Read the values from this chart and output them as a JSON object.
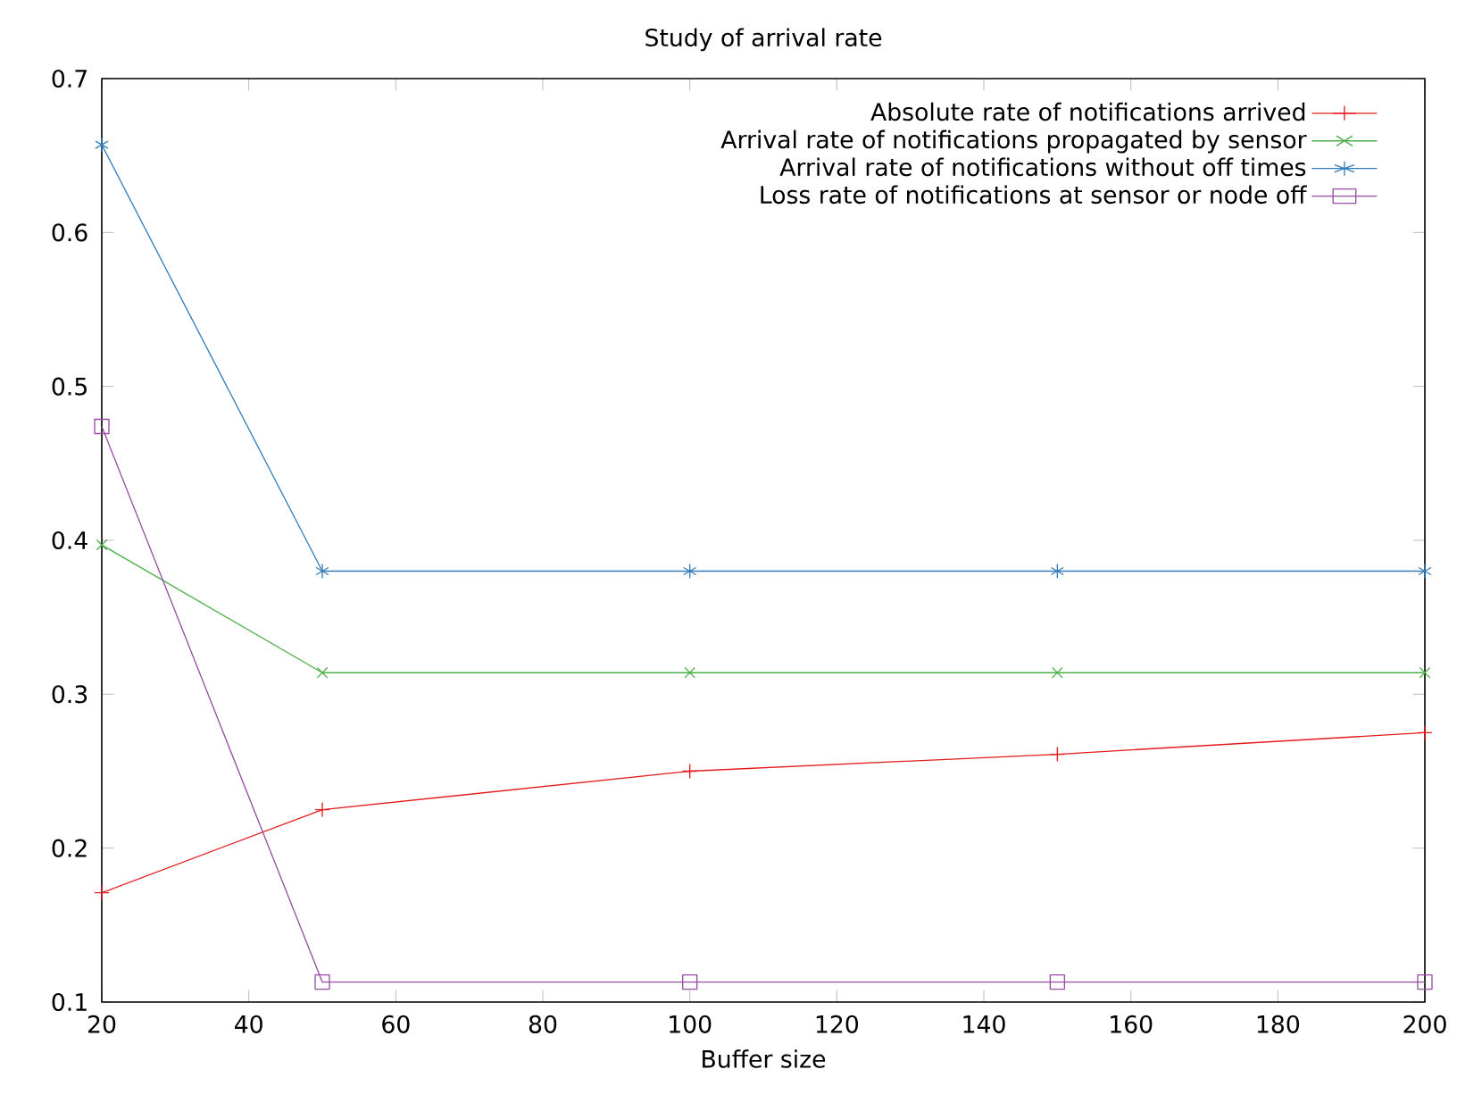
{
  "chart_data": {
    "type": "line",
    "title": "Study of arrival rate",
    "xlabel": "Buffer size",
    "x": [
      20,
      50,
      100,
      150,
      200
    ],
    "series": [
      {
        "name": "Absolute rate of notifications arrived",
        "color": "#e41a1c",
        "marker": "plus",
        "values": [
          0.171,
          0.225,
          0.25,
          0.261,
          0.275
        ]
      },
      {
        "name": "Arrival rate of notifications propagated by sensor",
        "color": "#4daf4a",
        "marker": "x",
        "values": [
          0.397,
          0.314,
          0.314,
          0.314,
          0.314
        ]
      },
      {
        "name": "Arrival rate of notifications without off times",
        "color": "#377eb8",
        "marker": "cross",
        "values": [
          0.657,
          0.38,
          0.38,
          0.38,
          0.38
        ]
      },
      {
        "name": "Loss rate of notifications at sensor or node off",
        "color": "#984ea3",
        "marker": "square",
        "values": [
          0.474,
          0.113,
          0.113,
          0.113,
          0.113
        ]
      }
    ],
    "xlim": [
      20,
      200
    ],
    "xticks": [
      20,
      40,
      60,
      80,
      100,
      120,
      140,
      160,
      180,
      200
    ],
    "ylim": [
      0.1,
      0.7
    ],
    "yticks": [
      0.1,
      0.2,
      0.3,
      0.4,
      0.5,
      0.6,
      0.7
    ],
    "grid": false,
    "legend": "top right",
    "line_style": "solid"
  }
}
